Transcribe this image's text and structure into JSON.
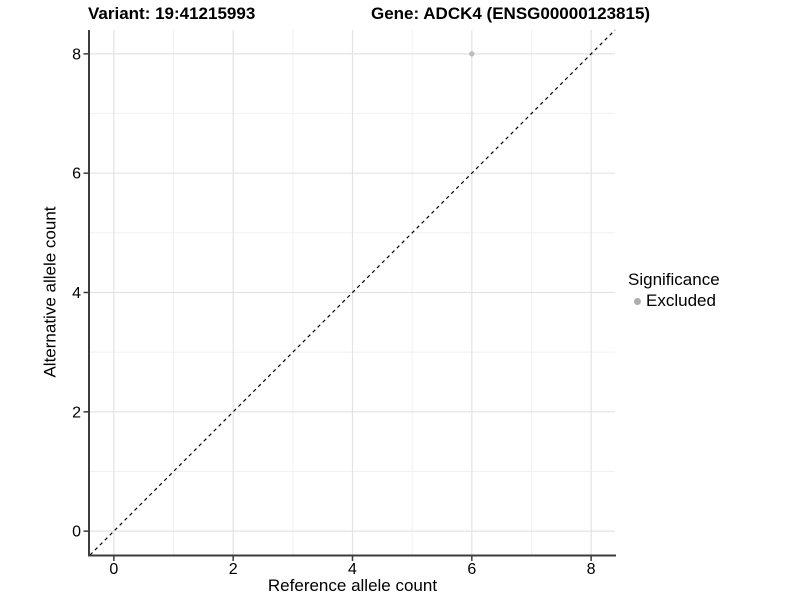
{
  "header": {
    "variant_title": "Variant: 19:41215993",
    "gene_title": "Gene: ADCK4 (ENSG00000123815)"
  },
  "chart_data": {
    "type": "scatter",
    "title_left": "Variant: 19:41215993",
    "title_right": "Gene: ADCK4 (ENSG00000123815)",
    "xlabel": "Reference allele count",
    "ylabel": "Alternative allele count",
    "xlim": [
      -0.4,
      8.4
    ],
    "ylim": [
      -0.4,
      8.4
    ],
    "x_ticks": [
      0,
      2,
      4,
      6,
      8
    ],
    "y_ticks": [
      0,
      2,
      4,
      6,
      8
    ],
    "x_minor_ticks": [
      1,
      3,
      5,
      7
    ],
    "y_minor_ticks": [
      1,
      3,
      5,
      7
    ],
    "grid": "major+minor",
    "series": [
      {
        "name": "Excluded",
        "marker": "circle",
        "color": "#BDBDBD",
        "points": [
          {
            "x": 6,
            "y": 8
          }
        ]
      }
    ],
    "reference_line": {
      "type": "identity",
      "slope": 1,
      "intercept": 0,
      "style": "dashed",
      "color": "#000000"
    },
    "legend": {
      "title": "Significance",
      "position": "right",
      "entries": [
        {
          "label": "Excluded",
          "color": "#ADADAD"
        }
      ]
    },
    "colors": {
      "grid_major": "#E3E3E3",
      "grid_minor": "#F1F1F1",
      "axis_line": "#3C3C3C",
      "tick_mark": "#3C3C3C",
      "tick_label": "#000000",
      "background": "#FFFFFF"
    }
  }
}
